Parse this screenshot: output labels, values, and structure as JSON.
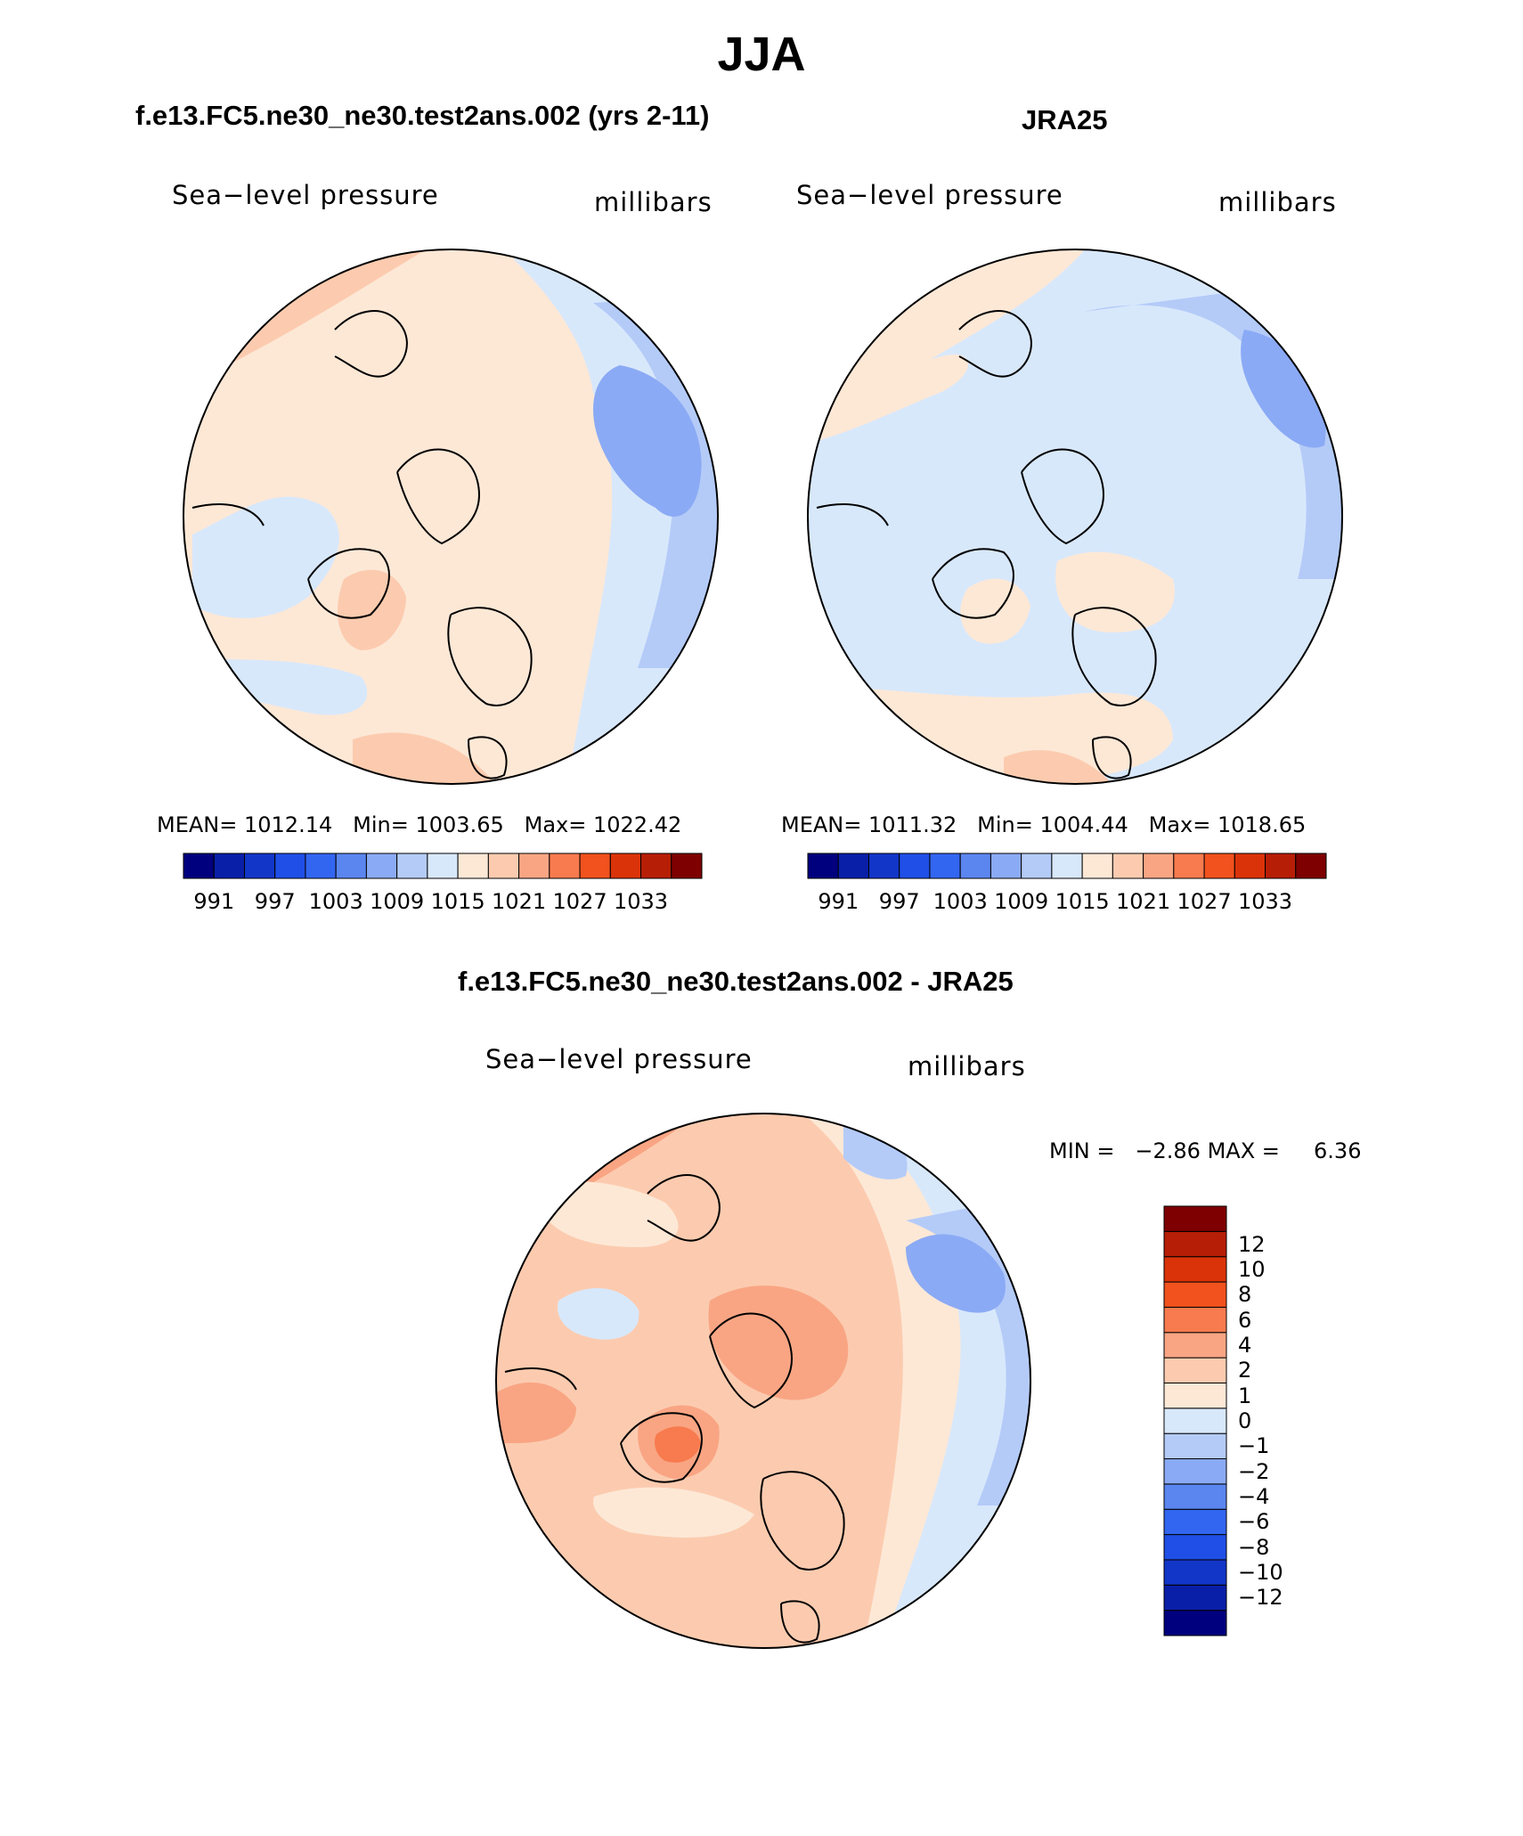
{
  "figure": {
    "title": "JJA"
  },
  "panels": [
    {
      "title": "f.e13.FC5.ne30_ne30.test2ans.002 (yrs 2-11)",
      "variable": "Sea−level pressure",
      "units": "millibars",
      "stats": {
        "mean_label": "MEAN=",
        "mean": "1012.14",
        "min_label": "Min=",
        "min": "1003.65",
        "max_label": "Max=",
        "max": "1022.42"
      }
    },
    {
      "title": "JRA25",
      "variable": "Sea−level pressure",
      "units": "millibars",
      "stats": {
        "mean_label": "MEAN=",
        "mean": "1011.32",
        "min_label": "Min=",
        "min": "1004.44",
        "max_label": "Max=",
        "max": "1018.65"
      }
    },
    {
      "title": "f.e13.FC5.ne30_ne30.test2ans.002 - JRA25",
      "variable": "Sea−level pressure",
      "units": "millibars",
      "stats": {
        "min_label": "MIN =",
        "min": "−2.86",
        "max_label": "MAX =",
        "max": "6.36"
      }
    }
  ],
  "colorbar_abs": {
    "colors": [
      "#00007f",
      "#0a1fa8",
      "#1236c8",
      "#1f4fe6",
      "#3366f0",
      "#5b86ef",
      "#8baaf5",
      "#b4cbf8",
      "#d8e8fb",
      "#fde8d6",
      "#fccbaf",
      "#f9a584",
      "#f77b4e",
      "#f1521e",
      "#db3309",
      "#b71e06",
      "#7f0000"
    ],
    "labels": [
      "991",
      "997",
      "1003",
      "1009",
      "1015",
      "1021",
      "1027",
      "1033"
    ]
  },
  "colorbar_diff": {
    "colors_bottom_to_top": [
      "#00007f",
      "#0a1fa8",
      "#1236c8",
      "#1f4fe6",
      "#3366f0",
      "#5b86ef",
      "#8baaf5",
      "#b4cbf8",
      "#d8e8fb",
      "#fde8d6",
      "#fccbaf",
      "#f9a584",
      "#f77b4e",
      "#f1521e",
      "#db3309",
      "#b71e06",
      "#7f0000"
    ],
    "labels_top_to_bottom": [
      "12",
      "10",
      "8",
      "6",
      "4",
      "2",
      "1",
      "0",
      "−1",
      "−2",
      "−4",
      "−6",
      "−8",
      "−10",
      "−12"
    ]
  }
}
